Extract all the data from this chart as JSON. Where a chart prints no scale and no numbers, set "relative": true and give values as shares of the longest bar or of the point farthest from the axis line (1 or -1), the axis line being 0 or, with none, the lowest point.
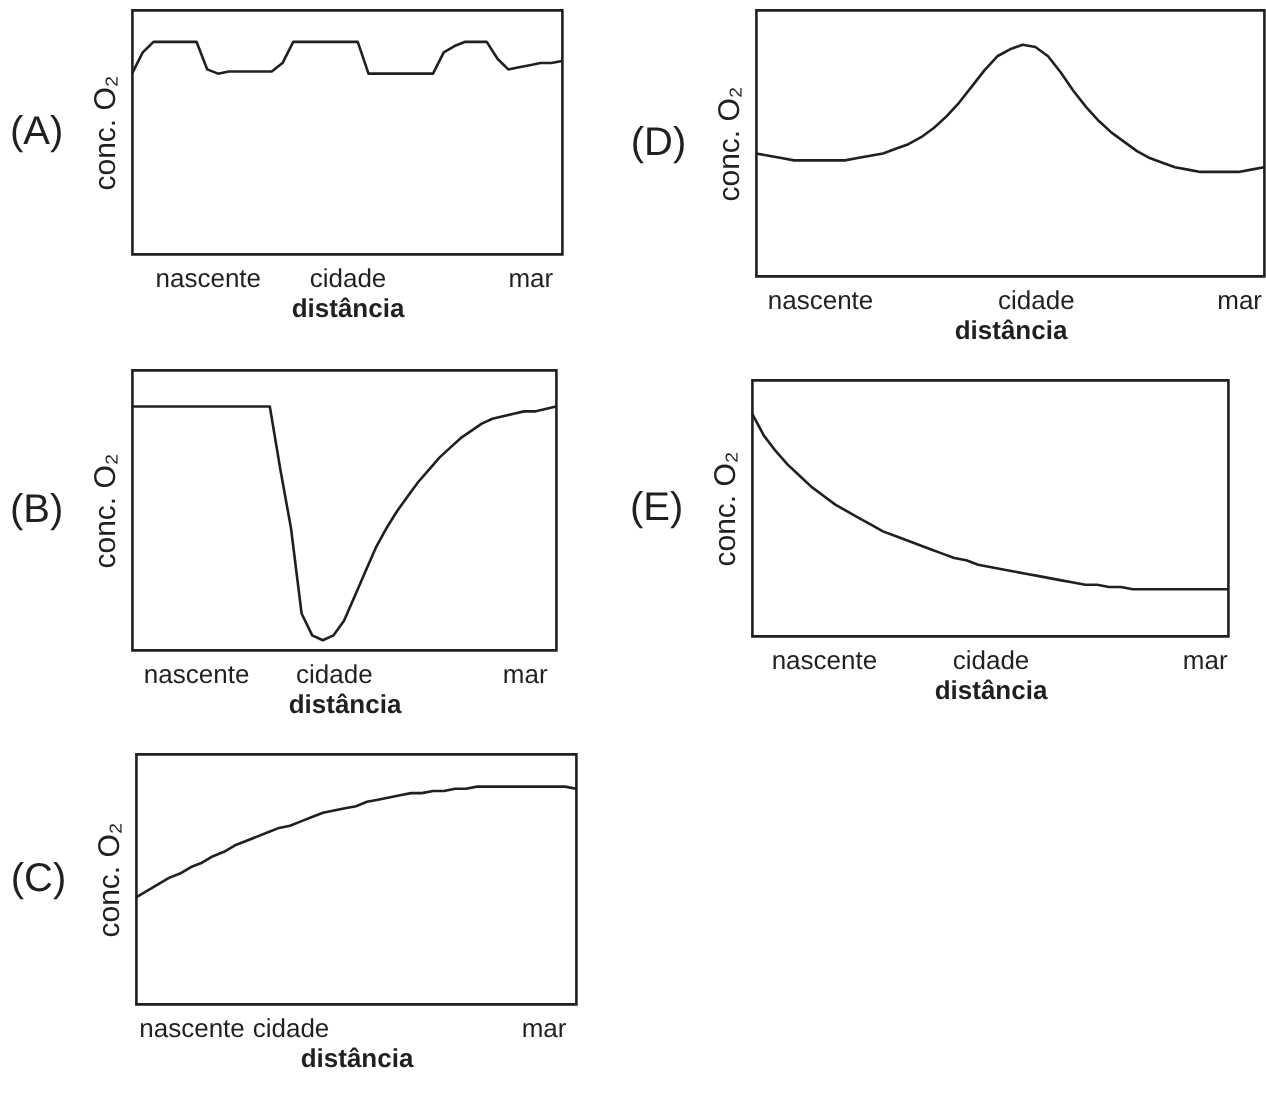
{
  "chart_data": [
    {
      "type": "line",
      "title": "(A)",
      "xlabel": "distância",
      "ylabel": "conc. O₂",
      "relative": true,
      "categories": [
        null,
        null,
        null,
        null,
        null,
        null,
        null,
        "nascente",
        null,
        null,
        null,
        null,
        null,
        null,
        null,
        null,
        null,
        null,
        null,
        null,
        "cidade",
        null,
        null,
        null,
        null,
        null,
        null,
        null,
        null,
        null,
        null,
        null,
        null,
        null,
        null,
        null,
        null,
        "mar",
        null,
        null,
        null
      ],
      "series": [
        {
          "color": "#231f20",
          "values": [
            0.85,
            0.95,
            1,
            1,
            1,
            1,
            1,
            0.87,
            0.85,
            0.86,
            0.86,
            0.86,
            0.86,
            0.86,
            0.9,
            1,
            1,
            1,
            1,
            1,
            1,
            1,
            0.85,
            0.85,
            0.85,
            0.85,
            0.85,
            0.85,
            0.85,
            0.95,
            0.98,
            1,
            1,
            1,
            0.92,
            0.87,
            0.88,
            0.89,
            0.9,
            0.9,
            0.91
          ]
        }
      ]
    },
    {
      "type": "line",
      "title": "(B)",
      "xlabel": "distância",
      "ylabel": "conc. O₂",
      "relative": true,
      "categories": [
        null,
        null,
        null,
        null,
        null,
        null,
        "nascente",
        null,
        null,
        null,
        null,
        null,
        null,
        null,
        null,
        null,
        null,
        null,
        null,
        "cidade",
        null,
        null,
        null,
        null,
        null,
        null,
        null,
        null,
        null,
        null,
        null,
        null,
        null,
        null,
        null,
        null,
        null,
        "mar",
        null,
        null,
        null
      ],
      "series": [
        {
          "color": "#231f20",
          "values": [
            1,
            1,
            1,
            1,
            1,
            1,
            1,
            1,
            1,
            1,
            1,
            1,
            1,
            1,
            0.74,
            0.5,
            0.15,
            0.06,
            0.04,
            0.06,
            0.12,
            0.22,
            0.32,
            0.42,
            0.5,
            0.57,
            0.63,
            0.69,
            0.74,
            0.79,
            0.83,
            0.87,
            0.9,
            0.93,
            0.95,
            0.96,
            0.97,
            0.98,
            0.98,
            0.99,
            1
          ]
        }
      ]
    },
    {
      "type": "line",
      "title": "(C)",
      "xlabel": "distância",
      "ylabel": "conc. O₂",
      "relative": true,
      "categories": [
        null,
        null,
        null,
        null,
        null,
        "nascente",
        null,
        null,
        null,
        null,
        null,
        null,
        null,
        null,
        "cidade",
        null,
        null,
        null,
        null,
        null,
        null,
        null,
        null,
        null,
        null,
        null,
        null,
        null,
        null,
        null,
        null,
        null,
        null,
        null,
        null,
        null,
        null,
        "mar",
        null,
        null,
        null
      ],
      "series": [
        {
          "color": "#231f20",
          "values": [
            0.49,
            0.52,
            0.55,
            0.58,
            0.6,
            0.63,
            0.65,
            0.68,
            0.7,
            0.73,
            0.75,
            0.77,
            0.79,
            0.81,
            0.82,
            0.84,
            0.86,
            0.88,
            0.89,
            0.9,
            0.91,
            0.93,
            0.94,
            0.95,
            0.96,
            0.97,
            0.97,
            0.98,
            0.98,
            0.99,
            0.99,
            1,
            1,
            1,
            1,
            1,
            1,
            1,
            1,
            1,
            0.99
          ]
        }
      ]
    },
    {
      "type": "line",
      "title": "(D)",
      "xlabel": "distância",
      "ylabel": "conc. O₂",
      "relative": true,
      "categories": [
        null,
        null,
        null,
        null,
        null,
        "nascente",
        null,
        null,
        null,
        null,
        null,
        null,
        null,
        null,
        null,
        null,
        null,
        null,
        null,
        null,
        null,
        null,
        "cidade",
        null,
        null,
        null,
        null,
        null,
        null,
        null,
        null,
        null,
        null,
        null,
        null,
        null,
        null,
        null,
        "mar",
        null,
        null
      ],
      "series": [
        {
          "color": "#231f20",
          "values": [
            0.53,
            0.52,
            0.51,
            0.5,
            0.5,
            0.5,
            0.5,
            0.5,
            0.51,
            0.52,
            0.53,
            0.55,
            0.57,
            0.6,
            0.64,
            0.69,
            0.75,
            0.82,
            0.89,
            0.95,
            0.98,
            1,
            0.99,
            0.95,
            0.88,
            0.8,
            0.73,
            0.67,
            0.62,
            0.58,
            0.54,
            0.51,
            0.49,
            0.47,
            0.46,
            0.45,
            0.45,
            0.45,
            0.45,
            0.46,
            0.47
          ]
        }
      ]
    },
    {
      "type": "line",
      "title": "(E)",
      "xlabel": "distância",
      "ylabel": "conc. O₂",
      "relative": true,
      "categories": [
        null,
        null,
        null,
        null,
        null,
        null,
        "nascente",
        null,
        null,
        null,
        null,
        null,
        null,
        null,
        null,
        null,
        null,
        null,
        null,
        null,
        "cidade",
        null,
        null,
        null,
        null,
        null,
        null,
        null,
        null,
        null,
        null,
        null,
        null,
        null,
        null,
        null,
        null,
        null,
        "mar",
        null,
        null
      ],
      "series": [
        {
          "color": "#231f20",
          "values": [
            1,
            0.9,
            0.83,
            0.77,
            0.72,
            0.67,
            0.63,
            0.59,
            0.56,
            0.53,
            0.5,
            0.47,
            0.45,
            0.43,
            0.41,
            0.39,
            0.37,
            0.35,
            0.34,
            0.32,
            0.31,
            0.3,
            0.29,
            0.28,
            0.27,
            0.26,
            0.25,
            0.24,
            0.23,
            0.23,
            0.22,
            0.22,
            0.21,
            0.21,
            0.21,
            0.21,
            0.21,
            0.21,
            0.21,
            0.21,
            0.21
          ]
        }
      ]
    }
  ]
}
